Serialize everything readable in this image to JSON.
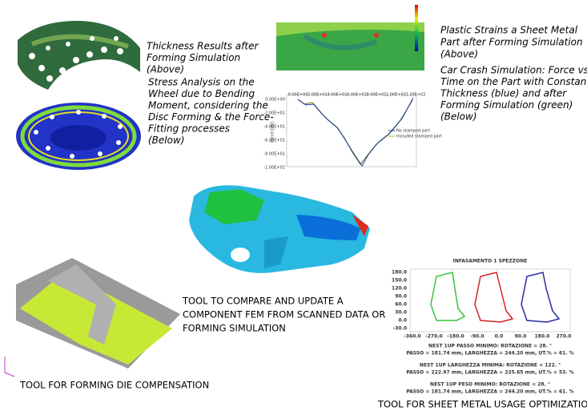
{
  "wheel_caption": {
    "above": [
      "Thickness Results after",
      "Forming Simulation",
      "(Above)"
    ],
    "below": [
      "Stress Analysis on the",
      "Wheel due to Bending",
      "Moment, considering the",
      "Disc Forming & the Force-",
      "Fitting processes",
      "(Below)"
    ]
  },
  "crash_caption": {
    "above": [
      "Plastic Strains a Sheet Metal",
      "Part after Forming Simulation",
      "(Above)"
    ],
    "below": [
      "Car Crash Simulation: Force vs.",
      "Time on the Part with Constant",
      "Thickness (blue) and after",
      "Forming Simulation (green)",
      "(Below)"
    ]
  },
  "crash_plot": {
    "y_label": "Force [kN]",
    "x_ticks": [
      "0.00E+00",
      "2.00E+01",
      "4.00E+01",
      "6.00E+01",
      "8.00E+01",
      "1.00E+02",
      "1.20E+02"
    ],
    "y_ticks": [
      "0.00E+00",
      "-2.00E+01",
      "-4.00E+01",
      "-6.00E+01",
      "-8.00E+01",
      "-1.00E+02"
    ],
    "legend": [
      "No stamped part",
      "Included stamped part"
    ]
  },
  "fem_caption": [
    "TOOL TO COMPARE AND UPDATE A",
    "COMPONENT FEM FROM SCANNED DATA OR",
    "FORMING SIMULATION"
  ],
  "die_caption": "TOOL FOR FORMING DIE COMPENSATION",
  "nest_plot": {
    "title": "INFASAMENTO 1 SPEZZONE",
    "y_ticks": [
      "180.0",
      "150.0",
      "120.0",
      "90.0",
      "60.0",
      "30.0",
      "0.0",
      "-30.0"
    ],
    "x_ticks": [
      "-360.0",
      "-270.0",
      "-180.0",
      "-90.0",
      "0.0",
      "90.0",
      "180.0",
      "270.0"
    ],
    "results": [
      "NEST 1UP PASSO MINIMO:      ROTAZIONE =   28. °",
      "PASSO = 181.74 mm, LARGHEZZA = 244.20 mm, UT.% = 61. %",
      "NEST 1UP LARGHEZZA MINIMA:  ROTAZIONE =  122. °",
      "PASSO = 222.97 mm, LARGHEZZA = 225.65 mm, UT.% = 53. %",
      "NEST 1UP PESO MINIMO:       ROTAZIONE =   28. °",
      "PASSO = 181.74 mm, LARGHEZZA = 244.20 mm, UT.% = 61. %"
    ]
  },
  "nest_caption": "TOOL FOR SHEET METAL USAGE OPTIMIZATION"
}
